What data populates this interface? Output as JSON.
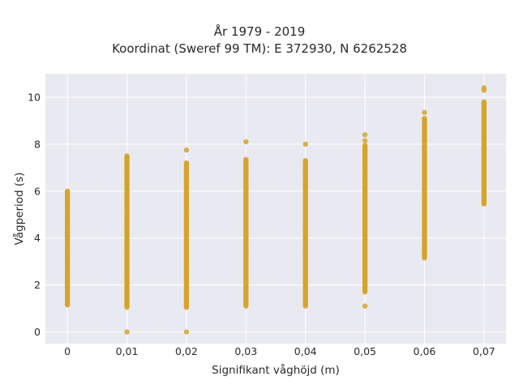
{
  "chart_data": {
    "type": "scatter",
    "title_lines": [
      "År 1979 - 2019",
      "Koordinat (Sweref 99 TM): E 372930, N 6262528"
    ],
    "xlabel": "Signifikant våghöjd (m)",
    "ylabel": "Vågperiod (s)",
    "x_tick_labels": [
      "0",
      "0,01",
      "0,02",
      "0,03",
      "0,04",
      "0,05",
      "0,06",
      "0,07"
    ],
    "x_tick_values": [
      0,
      0.01,
      0.02,
      0.03,
      0.04,
      0.05,
      0.06,
      0.07
    ],
    "y_ticks": [
      0,
      2,
      4,
      6,
      8,
      10
    ],
    "xlim": [
      -0.0037,
      0.0737
    ],
    "ylim": [
      -0.5,
      11
    ],
    "grid": true,
    "background": "#e9e9f1",
    "marker_color": "#d4a52a",
    "series": [
      {
        "columns": [
          {
            "x": 0,
            "y_min": 1.15,
            "y_max": 6.0,
            "outliers": []
          },
          {
            "x": 0.01,
            "y_min": 1.05,
            "y_max": 7.5,
            "outliers": [
              0
            ]
          },
          {
            "x": 0.02,
            "y_min": 1.05,
            "y_max": 7.2,
            "outliers": [
              7.75,
              0
            ]
          },
          {
            "x": 0.03,
            "y_min": 1.1,
            "y_max": 7.35,
            "outliers": [
              8.1
            ]
          },
          {
            "x": 0.04,
            "y_min": 1.1,
            "y_max": 7.3,
            "outliers": [
              8.0
            ]
          },
          {
            "x": 0.05,
            "y_min": 1.7,
            "y_max": 7.95,
            "outliers": [
              8.4,
              8.15,
              1.1
            ]
          },
          {
            "x": 0.06,
            "y_min": 3.2,
            "y_max": 9.1,
            "outliers": [
              9.35,
              3.5,
              3.15
            ]
          },
          {
            "x": 0.07,
            "y_min": 5.45,
            "y_max": 9.8,
            "outliers": [
              10.3,
              10.4
            ]
          }
        ]
      }
    ]
  }
}
